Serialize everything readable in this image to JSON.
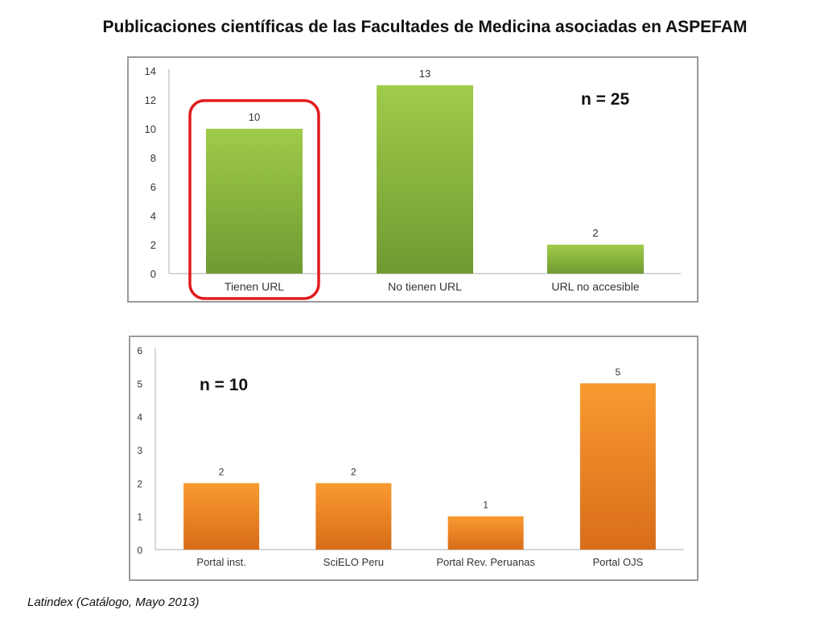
{
  "title": "Publicaciones científicas de las Facultades de Medicina asociadas en ASPEFAM",
  "source": "Latindex (Catálogo, Mayo 2013)",
  "colors": {
    "green": "#8ab646",
    "orange": "#f08a2a",
    "highlight": "#e11b1b"
  },
  "chart_data": [
    {
      "type": "bar",
      "annotation": "n = 25",
      "categories": [
        "Tienen URL",
        "No tienen URL",
        "URL no accesible"
      ],
      "values": [
        10,
        13,
        2
      ],
      "ylim": [
        0,
        14
      ],
      "yticks": [
        0,
        2,
        4,
        6,
        8,
        10,
        12,
        14
      ],
      "highlighted_category": "Tienen URL",
      "grid": false
    },
    {
      "type": "bar",
      "annotation": "n = 10",
      "categories": [
        "Portal inst.",
        "SciELO Peru",
        "Portal Rev. Peruanas",
        "Portal OJS"
      ],
      "values": [
        2,
        2,
        1,
        5
      ],
      "ylim": [
        0,
        6
      ],
      "yticks": [
        0,
        1,
        2,
        3,
        4,
        5,
        6
      ],
      "grid": false
    }
  ]
}
